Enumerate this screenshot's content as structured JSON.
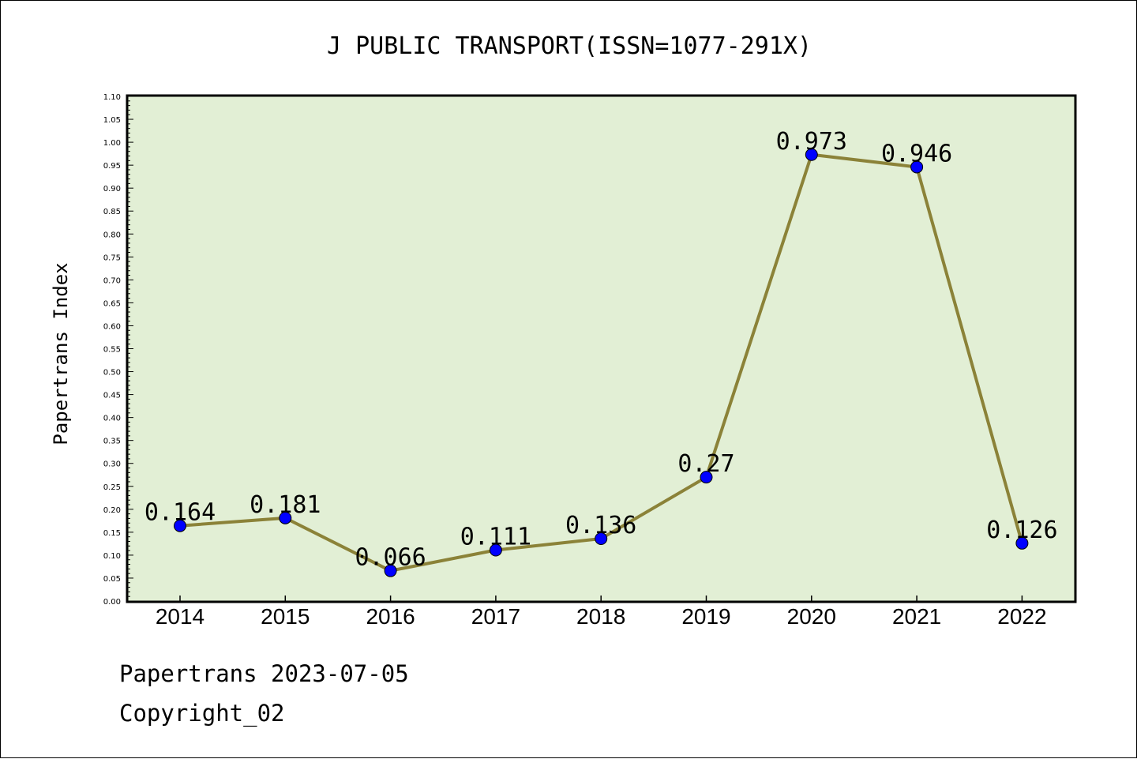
{
  "chart_data": {
    "type": "line",
    "title": "J PUBLIC TRANSPORT(ISSN=1077-291X)",
    "xlabel": "",
    "ylabel": "Papertrans Index",
    "categories": [
      "2014",
      "2015",
      "2016",
      "2017",
      "2018",
      "2019",
      "2020",
      "2021",
      "2022"
    ],
    "values": [
      0.164,
      0.181,
      0.066,
      0.111,
      0.136,
      0.27,
      0.973,
      0.946,
      0.126
    ],
    "data_labels": [
      "0.164",
      "0.181",
      "0.066",
      "0.111",
      "0.136",
      "0.27",
      "0.973",
      "0.946",
      "0.126"
    ],
    "ylim": [
      0,
      1.1
    ],
    "ytick_step": 0.05,
    "ytick_labels": [
      "0.00",
      "0.05",
      "0.10",
      "0.15",
      "0.20",
      "0.25",
      "0.30",
      "0.35",
      "0.40",
      "0.45",
      "0.50",
      "0.55",
      "0.60",
      "0.65",
      "0.70",
      "0.75",
      "0.80",
      "0.85",
      "0.90",
      "0.95",
      "1.00",
      "1.05",
      "1.10"
    ],
    "grid": false,
    "colors": {
      "plot_background": "#e2efd5",
      "line": "#8b8238",
      "marker": "#0000ff"
    }
  },
  "footer": {
    "line1": "Papertrans 2023-07-05",
    "line2": "Copyright_02"
  }
}
